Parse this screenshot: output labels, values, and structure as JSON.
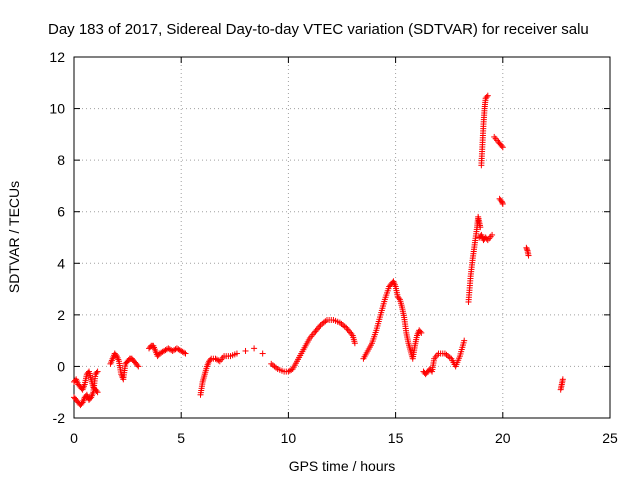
{
  "chart_data": {
    "type": "scatter",
    "title": "Day 183 of 2017, Sidereal Day-to-day VTEC variation (SDTVAR) for receiver salu",
    "xlabel": "GPS time / hours",
    "ylabel": "SDTVAR / TECUs",
    "xlim": [
      0,
      25
    ],
    "ylim": [
      -2,
      12
    ],
    "xticks": [
      0,
      5,
      10,
      15,
      20,
      25
    ],
    "yticks": [
      -2,
      0,
      2,
      4,
      6,
      8,
      10,
      12
    ],
    "grid": true,
    "marker": "plus",
    "color": "#ff0000",
    "series": [
      {
        "name": "SDTVAR",
        "x": [
          0.0,
          0.1,
          0.2,
          0.3,
          0.4,
          0.5,
          0.6,
          0.7,
          0.8,
          0.9,
          1.0,
          1.1,
          0.0,
          0.1,
          0.2,
          0.3,
          0.4,
          0.5,
          0.6,
          0.7,
          0.8,
          0.9,
          1.0,
          1.1,
          1.7,
          1.8,
          1.9,
          2.0,
          2.1,
          2.2,
          2.3,
          2.4,
          2.5,
          2.6,
          2.7,
          2.8,
          2.9,
          3.0,
          3.5,
          3.6,
          3.7,
          3.8,
          3.9,
          4.0,
          4.2,
          4.4,
          4.6,
          4.8,
          5.0,
          5.2,
          5.9,
          6.0,
          6.1,
          6.2,
          6.3,
          6.4,
          6.6,
          6.8,
          7.0,
          7.3,
          7.6,
          8.0,
          8.4,
          8.8,
          9.2,
          9.5,
          9.8,
          10.0,
          10.2,
          10.4,
          10.6,
          10.8,
          11.0,
          11.2,
          11.5,
          11.8,
          12.1,
          12.4,
          12.7,
          13.0,
          13.1,
          13.5,
          13.7,
          13.9,
          14.1,
          14.3,
          14.5,
          14.7,
          14.8,
          14.9,
          15.0,
          15.1,
          15.2,
          15.3,
          15.4,
          15.5,
          15.6,
          15.7,
          15.8,
          15.9,
          16.0,
          16.1,
          16.2,
          16.3,
          16.4,
          16.5,
          16.6,
          16.7,
          16.8,
          17.0,
          17.3,
          17.6,
          17.8,
          18.0,
          18.2,
          18.4,
          18.5,
          18.6,
          18.7,
          18.8,
          18.85,
          18.9,
          18.95,
          19.0,
          19.05,
          19.1,
          19.15,
          19.2,
          19.3,
          18.9,
          19.0,
          19.1,
          19.2,
          19.3,
          19.5,
          19.6,
          19.8,
          19.9,
          20.0,
          19.85,
          19.95,
          20.0,
          21.1,
          21.15,
          21.2,
          22.7,
          22.75,
          22.8
        ],
        "y": [
          -0.6,
          -0.5,
          -0.7,
          -0.8,
          -0.9,
          -0.7,
          -0.3,
          -0.2,
          -0.5,
          -0.8,
          -0.9,
          -1.0,
          -1.2,
          -1.3,
          -1.4,
          -1.5,
          -1.4,
          -1.2,
          -1.1,
          -1.3,
          -1.2,
          -1.0,
          -0.3,
          -0.2,
          0.1,
          0.3,
          0.5,
          0.4,
          0.2,
          -0.3,
          -0.5,
          0.1,
          0.2,
          0.3,
          0.3,
          0.2,
          0.1,
          0.0,
          0.7,
          0.8,
          0.8,
          0.6,
          0.4,
          0.5,
          0.6,
          0.7,
          0.6,
          0.7,
          0.6,
          0.5,
          -1.1,
          -0.6,
          -0.3,
          0.0,
          0.2,
          0.3,
          0.3,
          0.2,
          0.4,
          0.4,
          0.5,
          0.6,
          0.7,
          0.5,
          0.1,
          -0.1,
          -0.2,
          -0.2,
          -0.1,
          0.2,
          0.5,
          0.8,
          1.1,
          1.3,
          1.6,
          1.8,
          1.8,
          1.7,
          1.5,
          1.2,
          0.9,
          0.3,
          0.6,
          0.9,
          1.4,
          2.0,
          2.6,
          3.1,
          3.2,
          3.3,
          3.1,
          2.7,
          2.6,
          2.3,
          1.9,
          1.3,
          0.9,
          0.6,
          0.3,
          0.8,
          1.2,
          1.4,
          1.3,
          -0.2,
          -0.3,
          -0.2,
          -0.1,
          -0.2,
          0.3,
          0.5,
          0.5,
          0.3,
          0.0,
          0.4,
          1.0,
          2.5,
          3.5,
          4.2,
          4.8,
          5.4,
          5.8,
          5.6,
          5.4,
          7.8,
          8.6,
          9.4,
          10.0,
          10.4,
          10.5,
          5.0,
          5.1,
          4.9,
          5.0,
          4.9,
          5.1,
          8.9,
          8.7,
          8.6,
          8.5,
          6.5,
          6.4,
          6.3,
          4.6,
          4.5,
          4.3,
          -0.9,
          -0.7,
          -0.5
        ]
      }
    ]
  }
}
